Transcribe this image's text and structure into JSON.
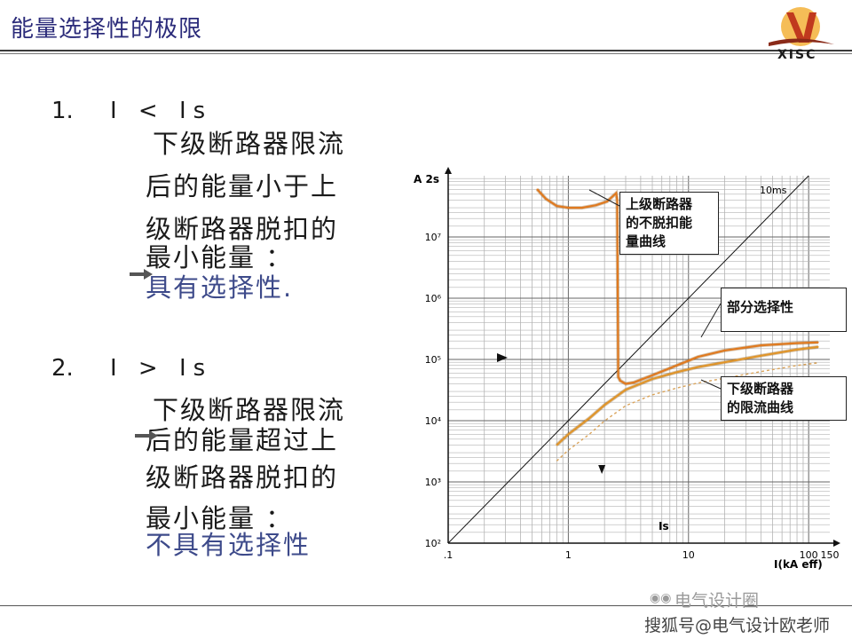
{
  "title": "能量选择性的极限",
  "logo": {
    "text": "XISC",
    "icon": "xisc-logo-icon"
  },
  "points": [
    {
      "number": "1.",
      "condition": "I < Is",
      "lines": [
        "下级断路器限流",
        "后的能量小于上",
        "级断路器脱扣的",
        "最小能量 ："
      ],
      "conclusion": "具有选择性."
    },
    {
      "number": "2.",
      "condition": "I > Is",
      "lines": [
        "下级断路器限流",
        "后的能量超过上",
        "级断路器脱扣的",
        "最小能量 ："
      ],
      "conclusion": "不具有选择性"
    }
  ],
  "chart_data": {
    "type": "line",
    "x_scale": "log",
    "y_scale": "log",
    "xlim": [
      0.1,
      150
    ],
    "ylim": [
      100,
      100000000
    ],
    "grid": true,
    "ylabel": "A 2s",
    "xlabel": "I(kA eff)",
    "x_ticks": [
      {
        "value": 0.1,
        "label": ".1"
      },
      {
        "value": 1,
        "label": "1"
      },
      {
        "value": 10,
        "label": "10"
      },
      {
        "value": 100,
        "label": "100"
      },
      {
        "value": 150,
        "label": "150"
      }
    ],
    "y_ticks": [
      {
        "value": 100,
        "label": "10²"
      },
      {
        "value": 1000,
        "label": "10³"
      },
      {
        "value": 10000,
        "label": "10⁴"
      },
      {
        "value": 100000,
        "label": "10⁵"
      },
      {
        "value": 1000000,
        "label": "10⁶"
      },
      {
        "value": 10000000,
        "label": "10⁷"
      }
    ],
    "reference_line": {
      "label": "10ms",
      "x": [
        0.1,
        150
      ],
      "y": [
        100,
        225000000
      ]
    },
    "is_marker": {
      "label": "Is",
      "x": 1.9
    },
    "series": [
      {
        "name": "上级断路器的不脱扣能量曲线",
        "x": [
          0.55,
          0.65,
          0.8,
          1.0,
          1.3,
          1.7,
          2.1,
          2.5,
          2.55,
          2.6,
          2.7,
          3.0,
          3.5,
          5,
          8,
          12,
          20,
          40,
          80,
          120
        ],
        "y": [
          60000000,
          42000000,
          32000000,
          30000000,
          30000000,
          33000000,
          38000000,
          52000000,
          40000000,
          52000,
          45000,
          40000,
          42000,
          55000,
          80000,
          110000,
          140000,
          170000,
          185000,
          190000
        ]
      },
      {
        "name": "下级断路器的限流曲线",
        "x": [
          0.8,
          1.0,
          1.5,
          2,
          3,
          5,
          8,
          12,
          20,
          40,
          80,
          120
        ],
        "y": [
          4000,
          6000,
          11000,
          18000,
          32000,
          48000,
          62000,
          75000,
          90000,
          115000,
          145000,
          160000
        ]
      }
    ],
    "callouts": [
      {
        "text_lines": [
          "上级断路器",
          "的不脱扣能",
          "量曲线"
        ]
      },
      {
        "text_lines": [
          "部分选择性"
        ]
      },
      {
        "text_lines": [
          "下级断路器",
          "的限流曲线"
        ]
      }
    ]
  },
  "watermark": {
    "line1": "电气设计圈",
    "line2": "搜狐号@电气设计欧老师"
  }
}
